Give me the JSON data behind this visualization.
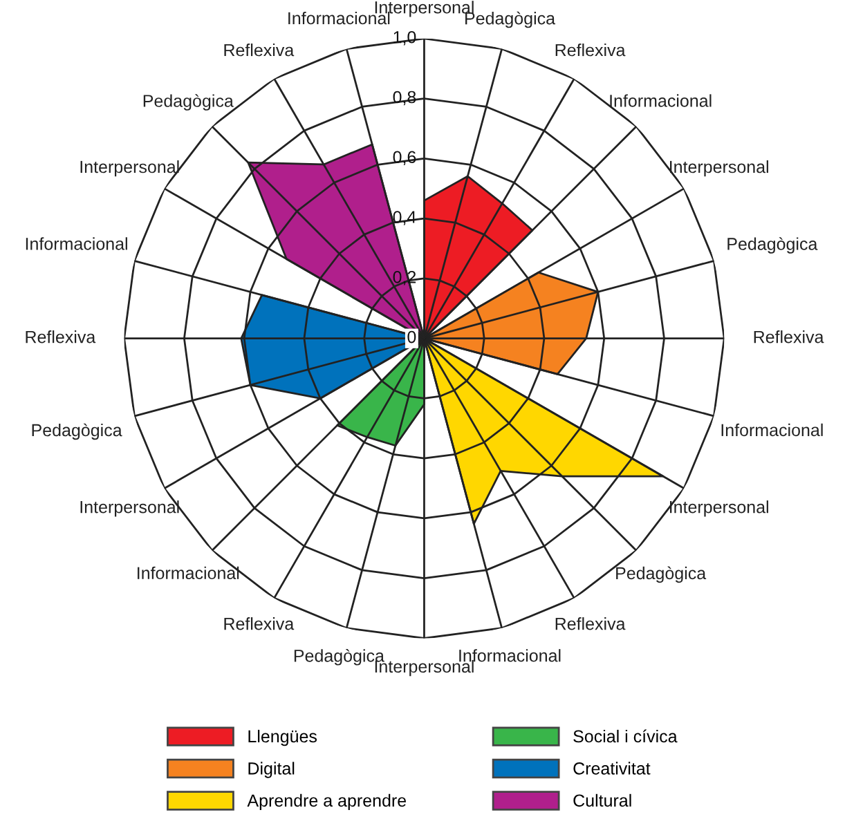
{
  "chart_data": {
    "type": "radar",
    "categories": [
      "Interpersonal",
      "Pedagògica",
      "Reflexiva",
      "Informacional",
      "Interpersonal",
      "Pedagògica",
      "Reflexiva",
      "Informacional",
      "Interpersonal",
      "Pedagògica",
      "Reflexiva",
      "Informacional",
      "Interpersonal",
      "Pedagògica",
      "Reflexiva",
      "Informacional",
      "Interpersonal",
      "Pedagògica",
      "Reflexiva",
      "Informacional",
      "Interpersonal",
      "Pedagògica",
      "Reflexiva",
      "Informacional"
    ],
    "series": [
      {
        "name": "Llengües",
        "color": "#ed1c24",
        "values": [
          0.46,
          0.56,
          0.52,
          0.51,
          null,
          null,
          null,
          null,
          null,
          null,
          null,
          null,
          null,
          null,
          null,
          null,
          null,
          null,
          null,
          null,
          null,
          null,
          null,
          null
        ]
      },
      {
        "name": "Digital",
        "color": "#f58220",
        "values": [
          null,
          null,
          null,
          null,
          0.44,
          0.6,
          0.54,
          0.46,
          null,
          null,
          null,
          null,
          null,
          null,
          null,
          null,
          null,
          null,
          null,
          null,
          null,
          null,
          null,
          null
        ]
      },
      {
        "name": "Aprendre a aprendre",
        "color": "#ffd700",
        "values": [
          null,
          null,
          null,
          null,
          null,
          null,
          null,
          null,
          0.92,
          0.65,
          0.51,
          0.64,
          null,
          null,
          null,
          null,
          null,
          null,
          null,
          null,
          null,
          null,
          null,
          null
        ]
      },
      {
        "name": "Social i cívica",
        "color": "#39b54a",
        "values": [
          null,
          null,
          null,
          null,
          null,
          null,
          null,
          null,
          null,
          null,
          null,
          null,
          0.22,
          0.37,
          0.38,
          0.41,
          null,
          null,
          null,
          null,
          null,
          null,
          null,
          null
        ]
      },
      {
        "name": "Creativitat",
        "color": "#0072bc",
        "values": [
          null,
          null,
          null,
          null,
          null,
          null,
          null,
          null,
          null,
          null,
          null,
          null,
          null,
          null,
          null,
          null,
          0.4,
          0.6,
          0.61,
          0.56,
          null,
          null,
          null,
          null
        ]
      },
      {
        "name": "Cultural",
        "color": "#b01f8c",
        "values": [
          null,
          null,
          null,
          null,
          null,
          null,
          null,
          null,
          null,
          null,
          null,
          null,
          null,
          null,
          null,
          null,
          null,
          null,
          null,
          null,
          0.53,
          0.83,
          0.67,
          0.67
        ]
      }
    ],
    "ylim": [
      0,
      1
    ],
    "yticks": [
      0,
      {
        "value": 0.2,
        "label": "0,2"
      },
      {
        "value": 0.4,
        "label": "0,4"
      },
      {
        "value": 0.6,
        "label": "0,6"
      },
      {
        "value": 0.8,
        "label": "0,8"
      },
      {
        "value": 1,
        "label": "1,0"
      }
    ],
    "grid": true,
    "legend": "bottom"
  }
}
